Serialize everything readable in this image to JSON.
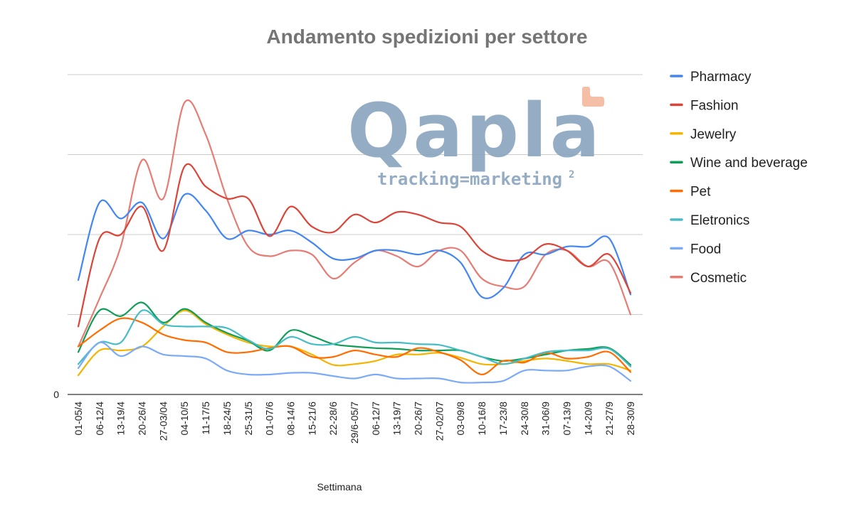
{
  "chart_data": {
    "type": "line",
    "title": "Andamento spedizioni per settore",
    "xlabel": "Settimana",
    "ylabel": "",
    "ylim": [
      0,
      4
    ],
    "yticks": [
      {
        "value": 0,
        "label": "0"
      }
    ],
    "grid": true,
    "legend_position": "right",
    "smooth": true,
    "categories": [
      "01-05/4",
      "06-12/4",
      "13-19/4",
      "20-26/4",
      "27-03/04",
      "04-10/5",
      "11-17/5",
      "18-24/5",
      "25-31/5",
      "01-07/6",
      "08-14/6",
      "15-21/6",
      "22-28/6",
      "29/6-05/7",
      "06-12/7",
      "13-19/7",
      "20-26/7",
      "27-02/07",
      "03-09/8",
      "10-16/8",
      "17-23/8",
      "24-30/8",
      "31-06/9",
      "07-13/9",
      "14-20/9",
      "21-27/9",
      "28-30/9"
    ],
    "series": [
      {
        "name": "Pharmacy",
        "color": "#4285F4",
        "values": [
          1.43,
          2.4,
          2.2,
          2.4,
          1.95,
          2.5,
          2.3,
          1.95,
          2.05,
          2.0,
          2.05,
          1.9,
          1.7,
          1.7,
          1.8,
          1.8,
          1.75,
          1.8,
          1.65,
          1.22,
          1.33,
          1.75,
          1.75,
          1.85,
          1.85,
          1.95,
          1.25
        ]
      },
      {
        "name": "Fashion",
        "color": "#DB4437",
        "values": [
          0.85,
          1.95,
          2.0,
          2.35,
          1.8,
          2.85,
          2.6,
          2.45,
          2.45,
          1.98,
          2.35,
          2.1,
          2.03,
          2.25,
          2.15,
          2.28,
          2.25,
          2.15,
          2.1,
          1.8,
          1.68,
          1.7,
          1.88,
          1.8,
          1.6,
          1.75,
          1.27
        ]
      },
      {
        "name": "Jewelry",
        "color": "#F4B400",
        "values": [
          0.24,
          0.55,
          0.55,
          0.6,
          0.85,
          1.05,
          0.88,
          0.75,
          0.65,
          0.6,
          0.6,
          0.5,
          0.37,
          0.38,
          0.42,
          0.5,
          0.5,
          0.52,
          0.46,
          0.38,
          0.38,
          0.42,
          0.45,
          0.42,
          0.38,
          0.38,
          0.3
        ]
      },
      {
        "name": "Wine and beverage",
        "color": "#0F9D58",
        "values": [
          0.53,
          1.05,
          0.98,
          1.15,
          0.9,
          1.07,
          0.9,
          0.77,
          0.67,
          0.55,
          0.8,
          0.73,
          0.63,
          0.6,
          0.58,
          0.57,
          0.55,
          0.55,
          0.55,
          0.47,
          0.42,
          0.45,
          0.5,
          0.55,
          0.57,
          0.58,
          0.37
        ]
      },
      {
        "name": "Pet",
        "color": "#FF6D00",
        "values": [
          0.6,
          0.8,
          0.95,
          0.9,
          0.75,
          0.68,
          0.65,
          0.53,
          0.53,
          0.58,
          0.6,
          0.47,
          0.47,
          0.55,
          0.5,
          0.47,
          0.58,
          0.53,
          0.43,
          0.25,
          0.42,
          0.4,
          0.52,
          0.45,
          0.47,
          0.53,
          0.28
        ]
      },
      {
        "name": "Eletronics",
        "color": "#46BDC6",
        "values": [
          0.38,
          0.65,
          0.65,
          1.05,
          0.88,
          0.85,
          0.85,
          0.83,
          0.68,
          0.57,
          0.72,
          0.63,
          0.63,
          0.72,
          0.65,
          0.65,
          0.63,
          0.62,
          0.55,
          0.47,
          0.38,
          0.45,
          0.53,
          0.55,
          0.55,
          0.57,
          0.35
        ]
      },
      {
        "name": "Food",
        "color": "#7BAAF7",
        "values": [
          0.33,
          0.65,
          0.48,
          0.6,
          0.5,
          0.48,
          0.45,
          0.3,
          0.25,
          0.25,
          0.27,
          0.27,
          0.23,
          0.2,
          0.25,
          0.2,
          0.2,
          0.2,
          0.15,
          0.15,
          0.17,
          0.3,
          0.3,
          0.3,
          0.35,
          0.35,
          0.17
        ]
      },
      {
        "name": "Cosmetic",
        "color": "#E67C73",
        "values": [
          0.6,
          1.2,
          1.85,
          2.93,
          2.45,
          3.65,
          3.25,
          2.45,
          1.85,
          1.73,
          1.8,
          1.75,
          1.45,
          1.65,
          1.8,
          1.73,
          1.6,
          1.8,
          1.8,
          1.45,
          1.35,
          1.35,
          1.75,
          1.8,
          1.6,
          1.65,
          1.0
        ]
      }
    ]
  },
  "logo": {
    "word": "Qapla",
    "tagline": "tracking=marketing",
    "superscript": "2",
    "primary_color": "#8BA7C0",
    "accent_color": "#F4B9A0"
  }
}
